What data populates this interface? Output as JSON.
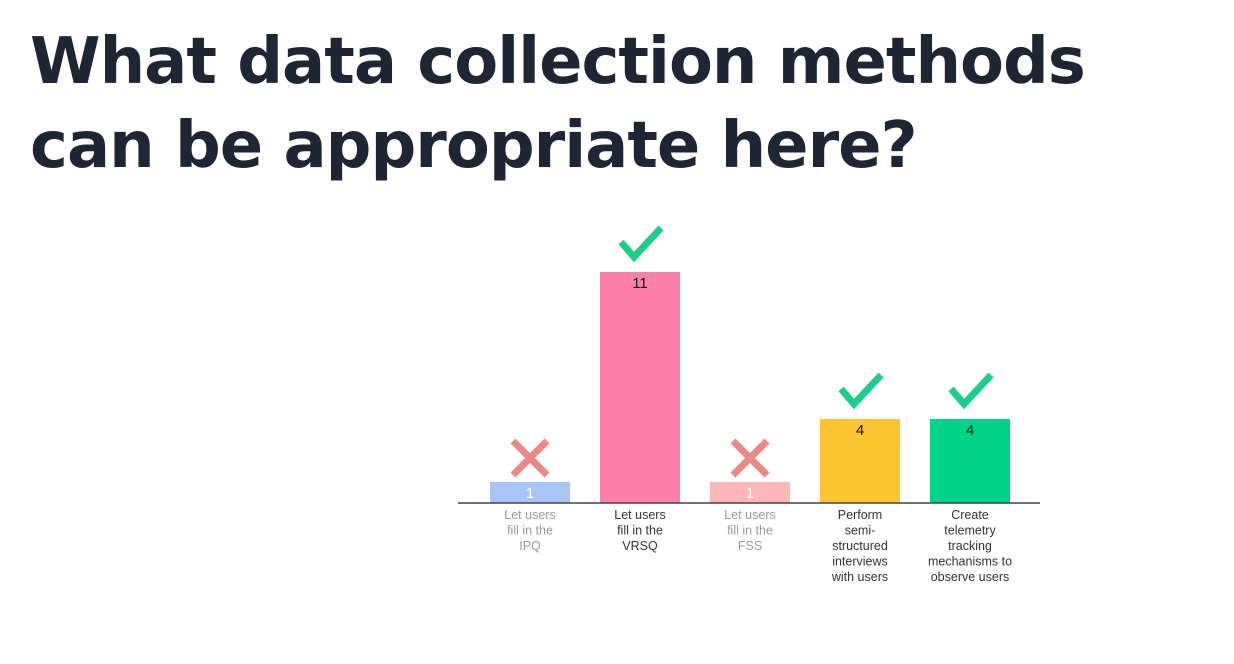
{
  "slide": {
    "title": "What data collection methods can be appropriate here?"
  },
  "chart_data": {
    "type": "bar",
    "title": "",
    "xlabel": "",
    "ylabel": "",
    "ylim": [
      0,
      11
    ],
    "grid": false,
    "categories": [
      "Let users fill in the IPQ",
      "Let users fill in the VRSQ",
      "Let users fill in the FSS",
      "Perform semi-structured interviews with users",
      "Create telemetry tracking mechanisms to observe users"
    ],
    "values": [
      1,
      11,
      1,
      4,
      4
    ],
    "correct": [
      false,
      true,
      false,
      true,
      true
    ],
    "colors": [
      "#a9c4f7",
      "#ff80ab",
      "#ffb7b8",
      "#ffc531",
      "#00d48a"
    ],
    "label_colors": [
      "#ffffff",
      "#111111",
      "#ffffff",
      "#111111",
      "#111111"
    ],
    "category_text_colors": [
      "#9a9a9a",
      "#333333",
      "#9a9a9a",
      "#333333",
      "#333333"
    ],
    "marker_colors": {
      "check": "#19cf8a",
      "cross": "#e98a88"
    },
    "axis_color": "#444444"
  }
}
